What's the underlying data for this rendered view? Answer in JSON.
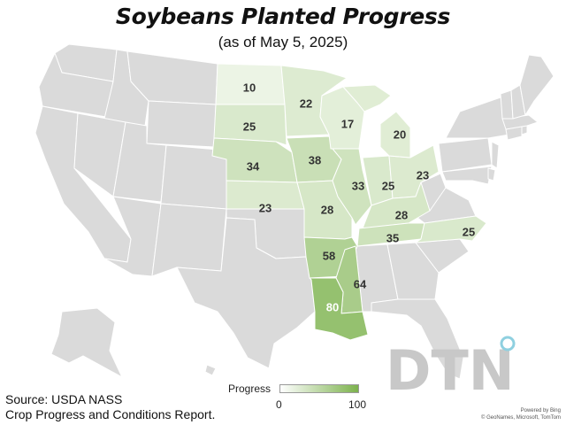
{
  "title": "Soybeans Planted Progress",
  "subtitle": "(as of May 5, 2025)",
  "colors": {
    "no_data": "#dadada",
    "low": "#ffffff",
    "high": "#7cb24d",
    "border": "#ffffff"
  },
  "legend": {
    "title": "Progress",
    "min": "0",
    "max": "100"
  },
  "source": {
    "line1": "Source: USDA NASS",
    "line2": "Crop Progress and Conditions Report."
  },
  "brand": {
    "logo_text": "DTN",
    "logo_icon": "dtn-circle-icon"
  },
  "credit": {
    "line1": "Powered by Bing",
    "line2": "© GeoNames, Microsoft, TomTom"
  },
  "states": [
    {
      "id": "ND",
      "value": 10
    },
    {
      "id": "MN",
      "value": 22
    },
    {
      "id": "WI",
      "value": 17
    },
    {
      "id": "MI",
      "value": 20
    },
    {
      "id": "SD",
      "value": 25
    },
    {
      "id": "NE",
      "value": 34
    },
    {
      "id": "IA",
      "value": 38
    },
    {
      "id": "IL",
      "value": 33
    },
    {
      "id": "IN",
      "value": 25
    },
    {
      "id": "OH",
      "value": 23
    },
    {
      "id": "KS",
      "value": 23
    },
    {
      "id": "MO",
      "value": 28
    },
    {
      "id": "KY",
      "value": 28
    },
    {
      "id": "TN",
      "value": 35
    },
    {
      "id": "NC",
      "value": 25
    },
    {
      "id": "AR",
      "value": 58
    },
    {
      "id": "MS",
      "value": 64
    },
    {
      "id": "LA",
      "value": 80
    }
  ]
}
